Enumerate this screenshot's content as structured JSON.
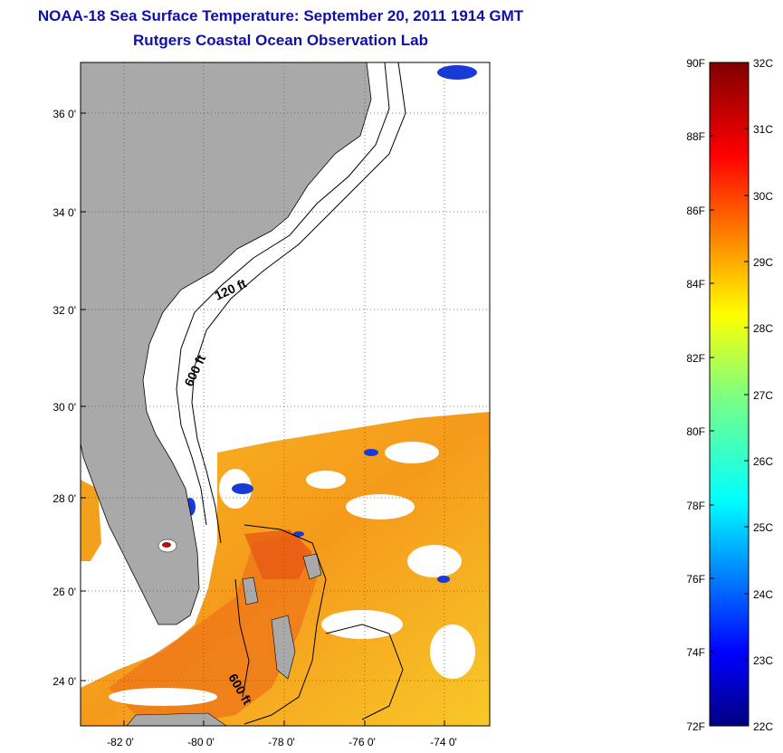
{
  "header": {
    "title": "NOAA-18 Sea Surface Temperature:  September 20, 2011 1914 GMT",
    "subtitle": "Rutgers Coastal Ocean Observation Lab"
  },
  "map": {
    "lon_ticks": [
      "-82 0'",
      "-80 0'",
      "-78 0'",
      "-76 0'",
      "-74 0'"
    ],
    "lat_ticks": [
      "36 0'",
      "34 0'",
      "32 0'",
      "30 0'",
      "28 0'",
      "26 0'",
      "24 0'"
    ],
    "contour_labels": [
      "120 ft",
      "600 ft",
      "600 ft"
    ],
    "colors": {
      "land": "#a9a9a9",
      "ocean_nodata": "#ffffff",
      "contour": "#000000"
    }
  },
  "colorbar": {
    "fahrenheit_labels": [
      "90F",
      "88F",
      "86F",
      "84F",
      "82F",
      "80F",
      "78F",
      "76F",
      "74F",
      "72F"
    ],
    "celsius_labels": [
      "32C",
      "31C",
      "30C",
      "29C",
      "28C",
      "27C",
      "26C",
      "25C",
      "24C",
      "23C",
      "22C"
    ],
    "palette": "jet",
    "range_f": [
      72,
      90
    ],
    "range_c": [
      22,
      32
    ]
  }
}
